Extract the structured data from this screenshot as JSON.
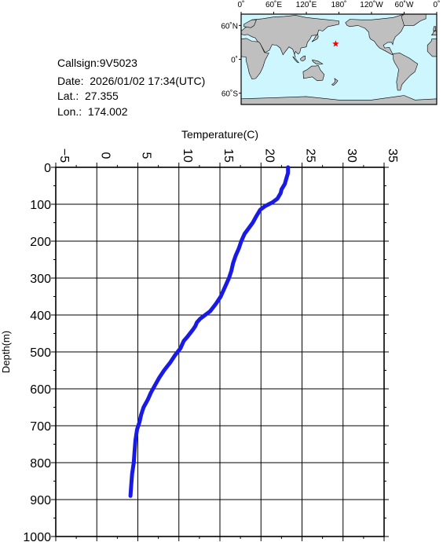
{
  "station": {
    "callsign_label": "Callsign:9V5023",
    "date_label": "Date:  2026/01/02 17:34(UTC)",
    "lat_label": "Lat.:  27.355",
    "lon_label": "Lon.:  174.002"
  },
  "map": {
    "top_labels": [
      "0˚",
      "60˚E",
      "120˚E",
      "180˚",
      "120˚W",
      "60˚W",
      "0˚"
    ],
    "lat_labels": [
      "60˚N",
      "0˚",
      "60˚S"
    ],
    "marker_lon": 174.002,
    "marker_lat": 27.355,
    "colors": {
      "ocean": "#cdf6ff",
      "land": "#bfbfbf",
      "marker": "#ff0000"
    }
  },
  "chart_data": {
    "type": "line",
    "title": "",
    "xlabel": "Temperature(C)",
    "ylabel": "Depth(m)",
    "xlim": [
      -5,
      35
    ],
    "ylim": [
      1000,
      0
    ],
    "x_ticks": [
      "−5",
      "0",
      "5",
      "10",
      "15",
      "20",
      "25",
      "30",
      "35"
    ],
    "y_ticks": [
      "0",
      "100",
      "200",
      "300",
      "400",
      "500",
      "600",
      "700",
      "800",
      "900",
      "1000"
    ],
    "grid": true,
    "line_color": "#1a1ae6",
    "series": [
      {
        "x": [
          23.3,
          23.3,
          23.1,
          22.9,
          22.5,
          22.4,
          22.0,
          21.4,
          20.5,
          19.9,
          19.5,
          19.0,
          18.5,
          18.0,
          17.6,
          17.3,
          16.9,
          16.6,
          16.4,
          16.1,
          15.9,
          15.5,
          15.1,
          14.5,
          13.8,
          13.2,
          12.6,
          12.2,
          12.0,
          11.7,
          11.0,
          10.6,
          10.2,
          9.5,
          8.9,
          8.2,
          7.6,
          7.1,
          6.6,
          6.2,
          5.7,
          5.4,
          5.2,
          4.9,
          4.7,
          4.6,
          4.5,
          4.3,
          4.2,
          4.1
        ],
        "y": [
          0,
          15,
          30,
          45,
          60,
          70,
          85,
          95,
          105,
          115,
          130,
          150,
          165,
          180,
          200,
          220,
          240,
          260,
          280,
          300,
          310,
          330,
          350,
          370,
          390,
          400,
          410,
          420,
          430,
          440,
          460,
          470,
          490,
          510,
          530,
          550,
          570,
          590,
          610,
          630,
          650,
          670,
          690,
          710,
          740,
          770,
          800,
          830,
          860,
          890
        ]
      }
    ]
  }
}
